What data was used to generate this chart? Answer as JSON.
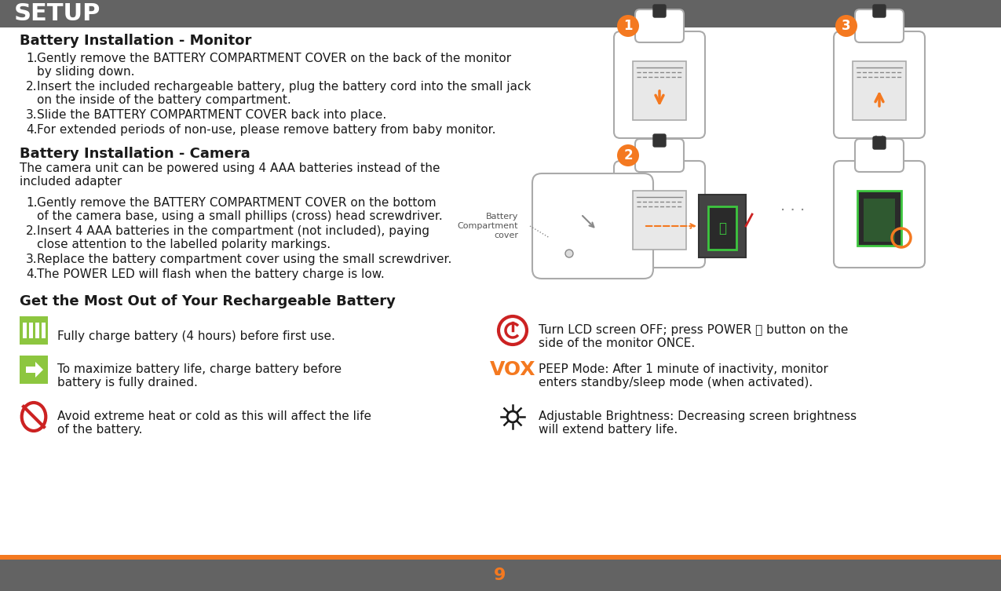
{
  "bg_color": "#ffffff",
  "header_bg": "#636363",
  "header_text": "SETUP",
  "header_text_color": "#ffffff",
  "orange_color": "#f47920",
  "footer_bg": "#636363",
  "footer_number": "9",
  "footer_number_color": "#f47920",
  "dark_text": "#1a1a1a",
  "green_color": "#8dc63f",
  "red_color": "#cc2222",
  "gray_color": "#888888",
  "title1": "Battery Installation - Monitor",
  "monitor_steps": [
    "Gently remove the BATTERY COMPARTMENT COVER on the back of the monitor\n   by sliding down.",
    "Insert the included rechargeable battery, plug the battery cord into the small jack\n   on the inside of the battery compartment.",
    "Slide the BATTERY COMPARTMENT COVER back into place.",
    "For extended periods of non-use, please remove battery from baby monitor."
  ],
  "title2": "Battery Installation - Camera",
  "camera_intro": "The camera unit can be powered using 4 AAA batteries instead of the\nincluded adapter",
  "camera_steps": [
    "Gently remove the BATTERY COMPARTMENT COVER on the bottom\n   of the camera base, using a small phillips (cross) head screwdriver.",
    "Insert 4 AAA batteries in the compartment (not included), paying\n   close attention to the labelled polarity markings.",
    "Replace the battery compartment cover using the small screwdriver.",
    "The POWER LED will flash when the battery charge is low."
  ],
  "title3": "Get the Most Out of Your Rechargeable Battery",
  "tips_left": [
    "Fully charge battery (4 hours) before first use.",
    "To maximize battery life, charge battery before\nbattery is fully drained.",
    "Avoid extreme heat or cold as this will affect the life\nof the battery."
  ],
  "tips_right": [
    "Turn LCD screen OFF; press POWER ⏻ button on the\nside of the monitor ONCE.",
    "PEEP Mode: After 1 minute of inactivity, monitor\nenters standby/sleep mode (when activated).",
    "Adjustable Brightness: Decreasing screen brightness\nwill extend battery life."
  ]
}
